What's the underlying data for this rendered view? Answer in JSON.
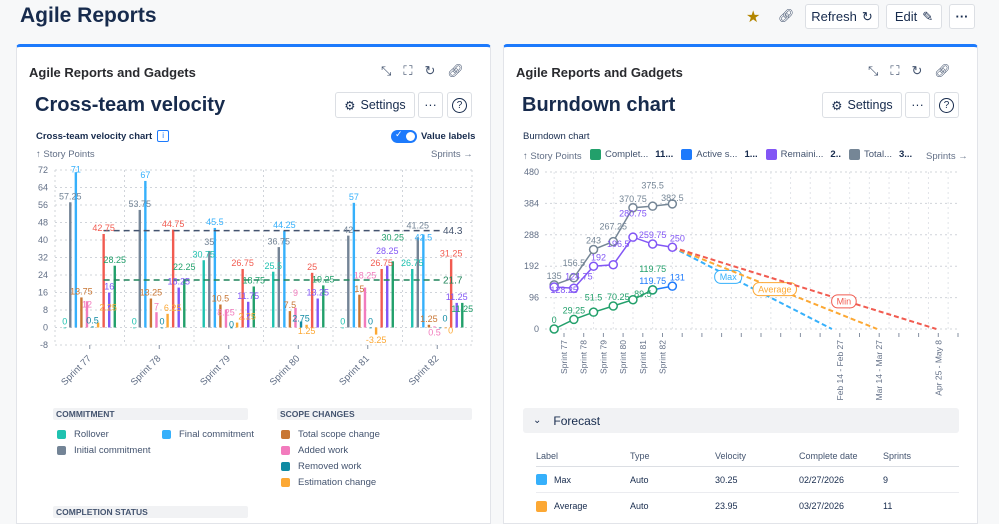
{
  "header": {
    "title": "Agile Reports",
    "refresh_label": "Refresh",
    "edit_label": "Edit",
    "star_color": "#b38600"
  },
  "velocity_panel": {
    "panel_title": "Agile Reports and Gadgets",
    "title": "Cross-team velocity",
    "settings_label": "Settings",
    "chart_title": "Cross-team velocity chart",
    "value_labels_label": "Value labels",
    "value_labels_on": true,
    "y_axis_label": "↑ Story Points",
    "x_axis_label": "Sprints →",
    "legend": {
      "commitment_header": "COMMITMENT",
      "commitment": [
        {
          "label": "Rollover",
          "color": "#1fc2b0"
        },
        {
          "label": "Final commitment",
          "color": "#36b0fb"
        },
        {
          "label": "Initial commitment",
          "color": "#738496"
        }
      ],
      "scope_header": "SCOPE CHANGES",
      "scope": [
        {
          "label": "Total scope change",
          "color": "#c87633"
        },
        {
          "label": "Added work",
          "color": "#f27bbd"
        },
        {
          "label": "Removed work",
          "color": "#0f8aa3"
        },
        {
          "label": "Estimation change",
          "color": "#fca834"
        }
      ],
      "completion_header": "COMPLETION STATUS"
    }
  },
  "burndown_panel": {
    "panel_title": "Agile Reports and Gadgets",
    "title": "Burndown chart",
    "settings_label": "Settings",
    "chart_title": "Burndown chart",
    "y_axis_label": "↑ Story Points",
    "x_axis_label": "Sprints →",
    "legend": [
      {
        "label": "Complet...",
        "value": "11...",
        "color": "#22a06b"
      },
      {
        "label": "Active s...",
        "value": "1...",
        "color": "#1d7afc"
      },
      {
        "label": "Remaini...",
        "value": "2..",
        "color": "#8256f5"
      },
      {
        "label": "Total...",
        "value": "3...",
        "color": "#758696"
      }
    ],
    "forecast": {
      "header": "Forecast",
      "columns": [
        "Label",
        "Type",
        "Velocity",
        "Complete date",
        "Sprints"
      ],
      "rows": [
        {
          "label": "Max",
          "type": "Auto",
          "velocity": "30.25",
          "date": "02/27/2026",
          "sprints": "9",
          "color": "#36b0fb"
        },
        {
          "label": "Average",
          "type": "Auto",
          "velocity": "23.95",
          "date": "03/27/2026",
          "sprints": "11",
          "color": "#fca834"
        }
      ]
    }
  },
  "chart_data": [
    {
      "type": "bar",
      "title": "Cross-team velocity chart",
      "ylabel": "Story Points",
      "xlabel": "Sprints",
      "ylim": [
        -8,
        72
      ],
      "yticks": [
        -8,
        0,
        8,
        16,
        24,
        32,
        40,
        48,
        56,
        64,
        72
      ],
      "grid": true,
      "categories": [
        "Sprint 77",
        "Sprint 78",
        "Sprint 79",
        "Sprint 80",
        "Sprint 81",
        "Sprint 82"
      ],
      "series": [
        {
          "name": "Rollover",
          "color": "#1fc2b0",
          "values": [
            0,
            0,
            30.75,
            25.5,
            0,
            26.75
          ]
        },
        {
          "name": "Initial commitment",
          "color": "#738496",
          "values": [
            57.25,
            53.75,
            35,
            36.75,
            42,
            41.25
          ]
        },
        {
          "name": "Final commitment",
          "color": "#36b0fb",
          "values": [
            71,
            67,
            45.5,
            44.25,
            57,
            42.5
          ]
        },
        {
          "name": "Total scope change",
          "color": "#c87633",
          "values": [
            13.75,
            13.25,
            10.5,
            7.5,
            15,
            1.25
          ]
        },
        {
          "name": "Added work",
          "color": "#f27bbd",
          "values": [
            12,
            7,
            8.25,
            9,
            18.25,
            0.5
          ]
        },
        {
          "name": "Removed work",
          "color": "#0f8aa3",
          "values": [
            0.5,
            0,
            0,
            2.75,
            0,
            0
          ]
        },
        {
          "name": "Estimation change",
          "color": "#fca834",
          "values": [
            2.25,
            6.25,
            2.25,
            1.25,
            -3.25,
            0
          ]
        },
        {
          "color": "#f15b50",
          "values": [
            42.75,
            44.75,
            26.75,
            25,
            26.75,
            31.25
          ]
        },
        {
          "color": "#8256f5",
          "values": [
            16,
            18.25,
            11.75,
            13.25,
            28.25,
            11.25
          ]
        },
        {
          "color": "#22a06b",
          "values": [
            28.25,
            22.25,
            18.75,
            19.25,
            30.25,
            11.25
          ]
        }
      ],
      "reference_lines": [
        {
          "value": 44.3,
          "label": "44.3",
          "color": "#44546f"
        },
        {
          "value": 21.7,
          "label": "21.7",
          "color": "#1f845a"
        }
      ]
    },
    {
      "type": "line",
      "title": "Burndown chart",
      "ylabel": "Story Points",
      "xlabel": "Sprints",
      "ylim": [
        0,
        480
      ],
      "yticks": [
        0,
        96,
        192,
        288,
        384,
        480
      ],
      "grid": true,
      "x_tick_labels": [
        "Sprint 77",
        "Sprint 78",
        "Sprint 79",
        "Sprint 80",
        "Sprint 81",
        "Sprint 82",
        "Feb 14 - Feb 27",
        "Mar 14 - Mar 27",
        "Apr 25 - May 8"
      ],
      "series": [
        {
          "name": "Completed",
          "color": "#22a06b",
          "values": [
            0,
            29.25,
            51.5,
            70.25,
            89.5,
            119.75,
            null
          ]
        },
        {
          "name": "Active sprint",
          "color": "#1d7afc",
          "values": [
            null,
            null,
            null,
            null,
            null,
            119.75,
            131
          ]
        },
        {
          "name": "Remaining",
          "color": "#8256f5",
          "values": [
            128.25,
            124.75,
            192,
            196.5,
            280.75,
            259.75,
            250
          ]
        },
        {
          "name": "Total",
          "color": "#758696",
          "values": [
            135,
            156.5,
            243,
            267.25,
            370.75,
            375.5,
            382.5
          ]
        }
      ],
      "forecasts": [
        {
          "label": "Max",
          "color": "#36b0fb",
          "end": "Feb 14 - Feb 27"
        },
        {
          "label": "Average",
          "color": "#fca834",
          "end": "Mar 14 - Mar 27"
        },
        {
          "label": "Min",
          "color": "#f15b50",
          "end": "Apr 25 - May 8"
        }
      ]
    }
  ]
}
